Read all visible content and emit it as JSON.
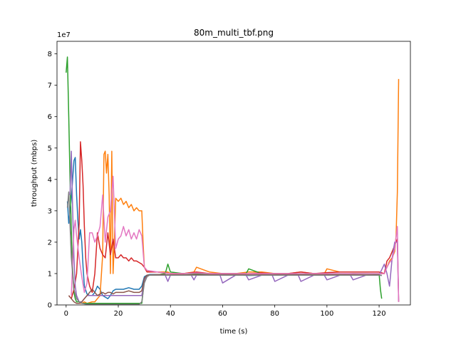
{
  "chart_data": {
    "type": "line",
    "title": "80m_multi_tbf.png",
    "xlabel": "time (s)",
    "ylabel": "throughput (mbps)",
    "y_offset_label": "1e7",
    "xlim": [
      -3.5,
      132
    ],
    "ylim": [
      0,
      8.4
    ],
    "xticks": [
      0,
      20,
      40,
      60,
      80,
      100,
      120
    ],
    "xtick_labels": [
      "0",
      "20",
      "40",
      "60",
      "80",
      "100",
      "120"
    ],
    "yticks": [
      0,
      1,
      2,
      3,
      4,
      5,
      6,
      7,
      8
    ],
    "ytick_labels": [
      "0",
      "1",
      "2",
      "3",
      "4",
      "5",
      "6",
      "7",
      "8"
    ],
    "y_unit_multiplier": 10000000,
    "grid": false,
    "legend": "none",
    "series": [
      {
        "color": "#1f77b4",
        "x": [
          0.5,
          1,
          2,
          3,
          3.5,
          4,
          4.5,
          5,
          5.5,
          6,
          6.5,
          7,
          8,
          9,
          10,
          11,
          12,
          13,
          14,
          15,
          16,
          17,
          18,
          19,
          20,
          22,
          24,
          26,
          28,
          29,
          30,
          31,
          32,
          35,
          40,
          45,
          50,
          55,
          60,
          65,
          70,
          75,
          80,
          85,
          90,
          95,
          100,
          105,
          110,
          115,
          120,
          121
        ],
        "y": [
          3.3,
          2.6,
          3.4,
          4.6,
          4.7,
          3.5,
          2.7,
          2.1,
          2.4,
          2.0,
          1.2,
          0.6,
          0.35,
          0.3,
          0.3,
          0.4,
          0.6,
          0.5,
          0.3,
          0.25,
          0.2,
          0.3,
          0.45,
          0.5,
          0.5,
          0.5,
          0.55,
          0.5,
          0.5,
          0.6,
          0.9,
          0.95,
          0.97,
          0.97,
          0.96,
          0.95,
          0.97,
          0.96,
          0.95,
          0.96,
          0.94,
          0.95,
          0.96,
          0.95,
          0.95,
          0.95,
          0.96,
          0.95,
          0.96,
          0.96,
          0.95,
          0.94
        ]
      },
      {
        "color": "#ff7f0e",
        "x": [
          4,
          5,
          6,
          7,
          8,
          10,
          11,
          12,
          13,
          14,
          14.5,
          15,
          15.5,
          16,
          16.5,
          17,
          17.5,
          18,
          18.5,
          19,
          20,
          21,
          22,
          23,
          24,
          25,
          26,
          27,
          28,
          29,
          29.5,
          30,
          31,
          32,
          35,
          38,
          39,
          40,
          45,
          49,
          50,
          55,
          60,
          65,
          70,
          75,
          80,
          85,
          90,
          95,
          99,
          100,
          105,
          110,
          115,
          120,
          121,
          122,
          123,
          124,
          125,
          126,
          126.5,
          127,
          127.5
        ],
        "y": [
          0.05,
          0.05,
          0.05,
          0.1,
          0.05,
          0.1,
          0.1,
          0.2,
          0.3,
          1.6,
          4.8,
          4.9,
          4.2,
          4.8,
          3.5,
          1.0,
          4.9,
          1.0,
          2.0,
          3.4,
          3.3,
          3.4,
          3.2,
          3.3,
          3.1,
          3.2,
          3.0,
          3.1,
          3.0,
          3.0,
          2.0,
          1.2,
          1.1,
          1.05,
          1.05,
          1.05,
          1.05,
          1.0,
          1.0,
          1.05,
          1.2,
          1.05,
          1.0,
          1.0,
          1.05,
          1.05,
          1.0,
          1.0,
          1.05,
          1.0,
          1.0,
          1.15,
          1.05,
          1.05,
          1.05,
          1.05,
          1.0,
          1.0,
          1.2,
          1.4,
          1.5,
          1.7,
          2.2,
          3.6,
          7.2
        ]
      },
      {
        "color": "#2ca02c",
        "x": [
          0,
          0.5,
          1,
          1.5,
          2,
          2.5,
          3,
          3.5,
          4,
          5,
          6,
          8,
          10,
          15,
          20,
          25,
          29,
          30,
          31,
          35,
          38,
          39,
          40,
          45,
          50,
          55,
          60,
          65,
          69,
          70,
          75,
          80,
          85,
          90,
          95,
          100,
          105,
          110,
          115,
          120,
          120.5,
          121
        ],
        "y": [
          7.4,
          7.9,
          6.0,
          4.0,
          2.4,
          1.1,
          0.4,
          0.2,
          0.1,
          0.1,
          0.05,
          0.05,
          0.05,
          0.05,
          0.05,
          0.05,
          0.05,
          0.8,
          0.95,
          0.96,
          1.0,
          1.3,
          1.05,
          1.0,
          1.0,
          0.99,
          1.0,
          1.0,
          1.0,
          1.15,
          1.0,
          1.0,
          0.98,
          0.98,
          1.0,
          1.0,
          0.98,
          1.0,
          1.0,
          0.99,
          0.5,
          0.2
        ]
      },
      {
        "color": "#d62728",
        "x": [
          1,
          2,
          3,
          4,
          5,
          5.5,
          6,
          6.5,
          7,
          7.5,
          8,
          9,
          10,
          11,
          12,
          13,
          14,
          15,
          16,
          17,
          18,
          19,
          20,
          21,
          22,
          23,
          24,
          25,
          26,
          27,
          28,
          29,
          30,
          31,
          35,
          40,
          45,
          50,
          55,
          60,
          65,
          70,
          75,
          80,
          85,
          90,
          95,
          100,
          105,
          110,
          115,
          120,
          122,
          123,
          124,
          125,
          126,
          127,
          127.5
        ],
        "y": [
          0.3,
          0.2,
          0.5,
          1.0,
          2.6,
          5.2,
          4.6,
          3.8,
          2.5,
          1.5,
          1.0,
          0.6,
          0.4,
          1.0,
          2.3,
          1.8,
          1.6,
          1.5,
          2.3,
          1.6,
          2.1,
          1.5,
          1.5,
          1.6,
          1.5,
          1.5,
          1.4,
          1.5,
          1.4,
          1.4,
          1.35,
          1.3,
          1.2,
          1.05,
          1.05,
          1.0,
          1.0,
          1.05,
          1.0,
          1.0,
          1.0,
          1.0,
          1.02,
          1.0,
          1.0,
          1.05,
          1.0,
          1.03,
          1.05,
          1.05,
          1.05,
          1.05,
          1.0,
          1.4,
          1.5,
          1.7,
          1.9,
          2.1,
          0.1
        ]
      },
      {
        "color": "#9467bd",
        "x": [
          1.5,
          2,
          2.5,
          3,
          3.5,
          4,
          4.5,
          5,
          6,
          7,
          8,
          9,
          10,
          15,
          20,
          25,
          29,
          30,
          31,
          35,
          38,
          39,
          40,
          45,
          48,
          49,
          50,
          55,
          59,
          60,
          65,
          69,
          70,
          75,
          79,
          80,
          85,
          89,
          90,
          95,
          99,
          100,
          105,
          109,
          110,
          115,
          120,
          122,
          123,
          124,
          125,
          126,
          127,
          127.5
        ],
        "y": [
          3.5,
          4.9,
          3.0,
          1.5,
          0.6,
          0.3,
          0.2,
          0.1,
          0.1,
          0.2,
          0.3,
          0.3,
          0.3,
          0.3,
          0.3,
          0.3,
          0.3,
          0.8,
          0.95,
          0.95,
          0.95,
          0.75,
          0.95,
          0.95,
          0.95,
          0.8,
          0.95,
          0.95,
          0.95,
          0.7,
          0.95,
          0.95,
          0.8,
          0.95,
          0.95,
          0.75,
          0.95,
          0.95,
          0.75,
          0.95,
          0.95,
          0.8,
          0.95,
          0.95,
          0.8,
          0.95,
          0.95,
          1.3,
          1.0,
          0.6,
          1.5,
          2.0,
          2.0,
          0.1
        ]
      },
      {
        "color": "#8c564b",
        "x": [
          1,
          2,
          3,
          4,
          5,
          6,
          7,
          8,
          9,
          10,
          11,
          12,
          13,
          14,
          15,
          16,
          17,
          18,
          19,
          20,
          22,
          24,
          26,
          28,
          29,
          30,
          31,
          35,
          40,
          45,
          50,
          55,
          60,
          65,
          70,
          75,
          80,
          85,
          90,
          95,
          100,
          105,
          110,
          115,
          120,
          121
        ],
        "y": [
          0.3,
          0.2,
          0.1,
          0.05,
          0.05,
          0.1,
          0.2,
          0.3,
          0.4,
          0.5,
          0.4,
          0.3,
          0.35,
          0.4,
          0.35,
          0.4,
          0.4,
          0.35,
          0.4,
          0.4,
          0.4,
          0.45,
          0.4,
          0.4,
          0.45,
          0.85,
          0.95,
          0.97,
          0.96,
          0.96,
          0.97,
          0.96,
          0.97,
          0.96,
          0.96,
          0.97,
          0.96,
          0.97,
          0.96,
          0.96,
          0.97,
          0.96,
          0.97,
          0.96,
          0.96,
          0.94
        ]
      },
      {
        "color": "#e377c2",
        "x": [
          2,
          3,
          3.5,
          4,
          5,
          6,
          7,
          8,
          9,
          10,
          11,
          12,
          13,
          14,
          15,
          16,
          17,
          18,
          19,
          20,
          21,
          22,
          23,
          24,
          25,
          26,
          27,
          28,
          29,
          30,
          31,
          35,
          40,
          45,
          50,
          55,
          60,
          65,
          70,
          75,
          80,
          85,
          90,
          95,
          100,
          105,
          110,
          115,
          120,
          122,
          123,
          124,
          125,
          126,
          127,
          127.5
        ],
        "y": [
          0.3,
          2.4,
          2.7,
          2.2,
          1.5,
          0.9,
          0.4,
          0.7,
          2.3,
          2.3,
          2.0,
          2.2,
          2.5,
          3.5,
          2.0,
          2.8,
          3.0,
          4.1,
          1.8,
          2.1,
          2.2,
          2.5,
          2.2,
          2.4,
          2.1,
          2.3,
          2.1,
          2.4,
          2.2,
          1.2,
          1.1,
          1.05,
          1.0,
          1.0,
          1.02,
          1.0,
          1.0,
          1.0,
          1.0,
          1.0,
          1.0,
          1.0,
          1.0,
          1.0,
          1.0,
          1.0,
          1.0,
          1.0,
          1.0,
          1.0,
          1.2,
          1.35,
          1.45,
          1.8,
          2.5,
          0.1
        ]
      },
      {
        "color": "#7f7f7f",
        "x": [
          0.5,
          1,
          2,
          3,
          4,
          5,
          6,
          8,
          10,
          15,
          20,
          25,
          28,
          29,
          30,
          31,
          32,
          35,
          40,
          45,
          50,
          55,
          60,
          65,
          70,
          75,
          80,
          85,
          90,
          95,
          100,
          105,
          110,
          115,
          120,
          121
        ],
        "y": [
          3.1,
          3.6,
          1.5,
          0.5,
          0.2,
          0.1,
          0.05,
          0.02,
          0.02,
          0.02,
          0.02,
          0.02,
          0.02,
          0.1,
          0.7,
          0.9,
          0.95,
          0.95,
          0.95,
          0.95,
          0.95,
          0.95,
          0.95,
          0.95,
          0.95,
          0.95,
          0.95,
          0.95,
          0.95,
          0.95,
          0.95,
          0.95,
          0.95,
          0.95,
          0.95,
          0.95
        ]
      }
    ]
  }
}
